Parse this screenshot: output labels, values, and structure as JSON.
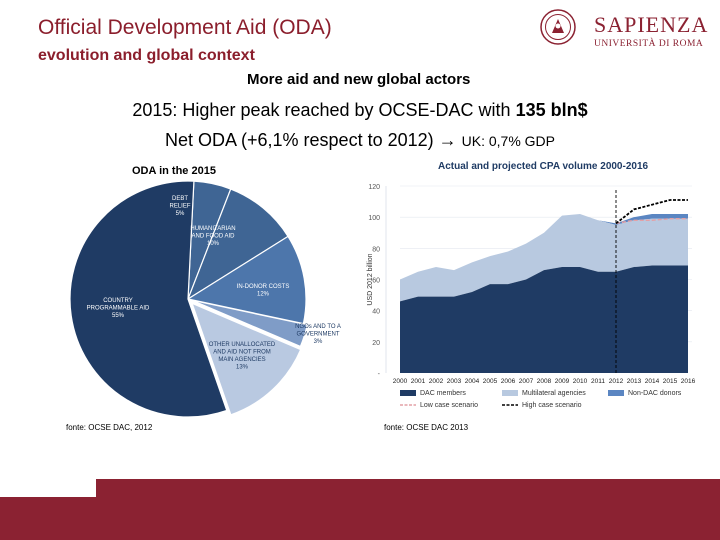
{
  "header": {
    "title": "Official Development Aid (ODA)",
    "subtitle": "evolution and global context",
    "tagline": "More aid and new global actors"
  },
  "headline": {
    "line1_prefix": "2015: Higher peak reached by OCSE-DAC with ",
    "line1_bold": "135 bln$",
    "line2_main": "Net ODA (+6,1% respect to 2012) → ",
    "line2_small": "UK: 0,7% GDP"
  },
  "logo": {
    "name": "SAPIENZA",
    "sub": "UNIVERSITÀ DI ROMA"
  },
  "colors": {
    "brand": "#8b2232",
    "navy": "#1f3b64",
    "mid_blue": "#4a6fa3",
    "light_blue": "#b8c9e0",
    "pale_blue": "#d0dcec"
  },
  "chart_data": [
    {
      "type": "pie",
      "title": "ODA in the 2015",
      "slices": [
        {
          "label": "DEBT RELIEF",
          "value": 5,
          "display": "5%"
        },
        {
          "label": "HUMANITARIAN AND FOOD AID",
          "value": 10,
          "display": "10%"
        },
        {
          "label": "IN-DONOR COSTS",
          "value": 12,
          "display": "12%"
        },
        {
          "label": "NGOs AND TO A GOVERNMENT",
          "value": 3,
          "display": "3%"
        },
        {
          "label": "OTHER UNALLOCATED AND AID NOT FROM MAIN AGENCIES",
          "value": 13,
          "display": "13%"
        },
        {
          "label": "COUNTRY PROGRAMMABLE AID",
          "value": 55,
          "display": "55%"
        }
      ],
      "source": "fonte: OCSE DAC, 2012"
    },
    {
      "type": "area",
      "title": "Actual and projected CPA volume 2000-2016",
      "ylabel": "USD 2012 billion",
      "ylim": [
        0,
        120
      ],
      "yticks": [
        "-",
        "20",
        "40",
        "60",
        "80",
        "100",
        "120"
      ],
      "categories": [
        "2000",
        "2001",
        "2002",
        "2003",
        "2004",
        "2005",
        "2006",
        "2007",
        "2008",
        "2009",
        "2010",
        "2011",
        "2012",
        "2013",
        "2014",
        "2015",
        "2016"
      ],
      "series": [
        {
          "name": "DAC members",
          "values": [
            46,
            49,
            49,
            49,
            52,
            57,
            57,
            60,
            66,
            68,
            68,
            65,
            65,
            68,
            69,
            69,
            69
          ]
        },
        {
          "name": "Multilateral agencies",
          "values": [
            14,
            16,
            19,
            17,
            19,
            18,
            21,
            23,
            24,
            33,
            34,
            33,
            30,
            30,
            30,
            30,
            30
          ]
        },
        {
          "name": "Non-DAC donors",
          "values": [
            0,
            0,
            0,
            0,
            0,
            0,
            0,
            0,
            0,
            0,
            0,
            0,
            1,
            2,
            3,
            3,
            3
          ]
        }
      ],
      "scenarios": [
        {
          "name": "Low case scenario",
          "x": [
            "2012",
            "2013",
            "2014",
            "2015",
            "2016"
          ],
          "values": [
            96,
            98,
            98,
            99,
            99
          ]
        },
        {
          "name": "High case scenario",
          "x": [
            "2012",
            "2013",
            "2014",
            "2015",
            "2016"
          ],
          "values": [
            96,
            105,
            108,
            111,
            111
          ]
        }
      ],
      "source": "fonte: OCSE DAC 2013"
    }
  ]
}
